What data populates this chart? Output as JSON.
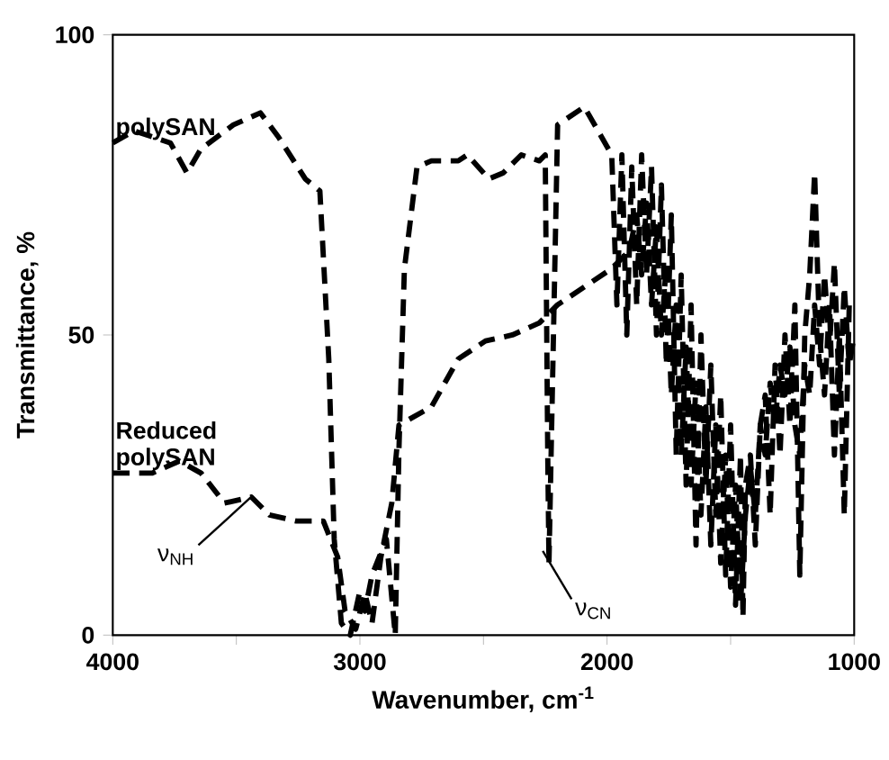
{
  "chart_data": {
    "type": "line",
    "xlabel": "Wavenumber, cm$^{-1}$",
    "ylabel": "Transmittance, %",
    "xlim": [
      4000,
      1000
    ],
    "ylim": [
      0,
      100
    ],
    "xticks": [
      4000,
      {
        "value": 3500,
        "label": null
      },
      3000,
      {
        "value": 2500,
        "label": null
      },
      2000,
      {
        "value": 1500,
        "label": null
      },
      1000
    ],
    "yticks": [
      0,
      50,
      100
    ],
    "grid": false,
    "legend": false,
    "marker": "none",
    "line_style": "dashed",
    "annotations": [
      {
        "text": "ν$_{NH}$",
        "x": 3440,
        "y": 23
      },
      {
        "text": "ν$_{CN}$",
        "x": 2260,
        "y": 14
      }
    ],
    "series": [
      {
        "name": "polySAN",
        "color": "#000000",
        "x": [
          4000,
          3913,
          3767,
          3700,
          3643,
          3512,
          3403,
          3330,
          3221,
          3162,
          3126,
          3104,
          3075,
          3039,
          3002,
          2980,
          2951,
          2893,
          2857,
          2842,
          2820,
          2769,
          2711,
          2602,
          2565,
          2478,
          2420,
          2347,
          2274,
          2250,
          2245,
          2240,
          2235,
          2200,
          2092,
          1981,
          1960,
          1940,
          1920,
          1900,
          1880,
          1860,
          1840,
          1820,
          1800,
          1780,
          1760,
          1740,
          1720,
          1700,
          1680,
          1660,
          1640,
          1620,
          1600,
          1580,
          1560,
          1540,
          1520,
          1500,
          1480,
          1460,
          1450,
          1440,
          1420,
          1400,
          1380,
          1360,
          1340,
          1320,
          1300,
          1280,
          1260,
          1240,
          1220,
          1200,
          1180,
          1160,
          1140,
          1120,
          1100,
          1080,
          1060,
          1040,
          1020,
          1000
        ],
        "values": [
          82,
          84,
          82,
          77,
          81,
          85,
          87,
          83,
          76,
          74,
          46,
          16,
          2,
          0,
          7,
          4,
          10,
          16,
          0,
          31,
          61,
          78,
          79,
          79,
          80,
          76,
          77,
          80,
          79,
          80,
          55,
          30,
          12,
          85,
          88,
          80,
          55,
          80,
          50,
          78,
          55,
          80,
          60,
          78,
          50,
          75,
          45,
          70,
          30,
          60,
          25,
          55,
          15,
          50,
          25,
          45,
          20,
          40,
          10,
          35,
          5,
          30,
          3,
          25,
          30,
          15,
          35,
          40,
          20,
          45,
          30,
          50,
          35,
          55,
          10,
          50,
          60,
          77,
          50,
          40,
          55,
          30,
          50,
          20,
          55,
          55
        ]
      },
      {
        "name": "Reduced polySAN",
        "color": "#000000",
        "x": [
          4000,
          3840,
          3731,
          3643,
          3548,
          3439,
          3366,
          3257,
          3148,
          3090,
          3060,
          3017,
          2980,
          2951,
          2915,
          2871,
          2842,
          2711,
          2602,
          2492,
          2383,
          2274,
          2201,
          2092,
          1983,
          1910,
          1880,
          1860,
          1840,
          1820,
          1800,
          1780,
          1760,
          1740,
          1720,
          1700,
          1680,
          1660,
          1640,
          1620,
          1600,
          1580,
          1560,
          1540,
          1520,
          1500,
          1480,
          1460,
          1440,
          1420,
          1400,
          1380,
          1360,
          1340,
          1320,
          1300,
          1280,
          1260,
          1240,
          1220,
          1200,
          1180,
          1160,
          1140,
          1120,
          1100,
          1080,
          1060,
          1040,
          1020,
          1000
        ],
        "values": [
          27,
          27,
          29,
          27,
          22,
          23,
          20,
          19,
          19,
          13,
          4,
          1,
          7,
          2,
          13,
          22,
          35,
          38,
          46,
          49,
          50,
          52,
          55,
          58,
          61,
          64,
          70,
          60,
          72,
          55,
          68,
          50,
          62,
          40,
          55,
          30,
          48,
          25,
          42,
          20,
          38,
          15,
          35,
          12,
          30,
          8,
          25,
          5,
          20,
          28,
          20,
          35,
          30,
          42,
          35,
          45,
          40,
          48,
          35,
          30,
          45,
          40,
          55,
          45,
          60,
          48,
          62,
          40,
          58,
          45,
          50
        ]
      }
    ]
  }
}
